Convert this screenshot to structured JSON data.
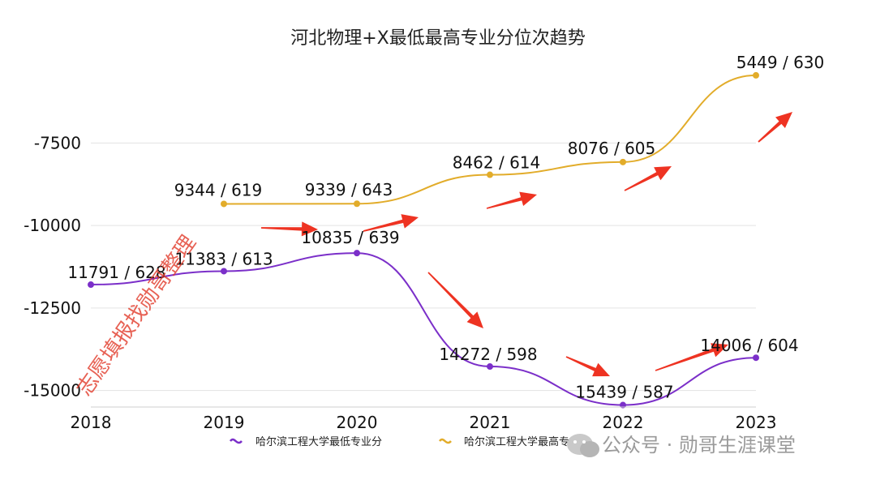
{
  "chart_data": {
    "type": "line",
    "title": "河北物理+X最低最高专业分位次趋势",
    "x": [
      "2018",
      "2019",
      "2020",
      "2021",
      "2022",
      "2023"
    ],
    "y_ticks": [
      "-7500",
      "-10000",
      "-12500",
      "-15000"
    ],
    "ylim": [
      -15500,
      -5500
    ],
    "grid": true,
    "legend_position": "bottom",
    "series": [
      {
        "name": "哈尔滨工程大学最低专业分",
        "color": "#7b2fc9",
        "values": [
          -11791,
          -11383,
          -10835,
          -14272,
          -15439,
          -14006
        ],
        "labels": [
          "11791 / 628",
          "11383 / 613",
          "10835 / 639",
          "14272 / 598",
          "15439 / 587",
          "14006 / 604"
        ]
      },
      {
        "name": "哈尔滨工程大学最高专业分",
        "color": "#e2ac2a",
        "values": [
          null,
          -9344,
          -9339,
          -8462,
          -8076,
          -5449
        ],
        "labels": [
          null,
          "9344 / 619",
          "9339 / 643",
          "8462 / 614",
          "8076 / 605",
          "5449 / 630"
        ]
      }
    ]
  },
  "annotations": {
    "arrow_color": "#ee3322",
    "watermark_text": "志愿填报找勋哥整理",
    "footer_text": "公众号 · 勋哥生涯课堂",
    "footer_icon": "wechat-icon"
  }
}
